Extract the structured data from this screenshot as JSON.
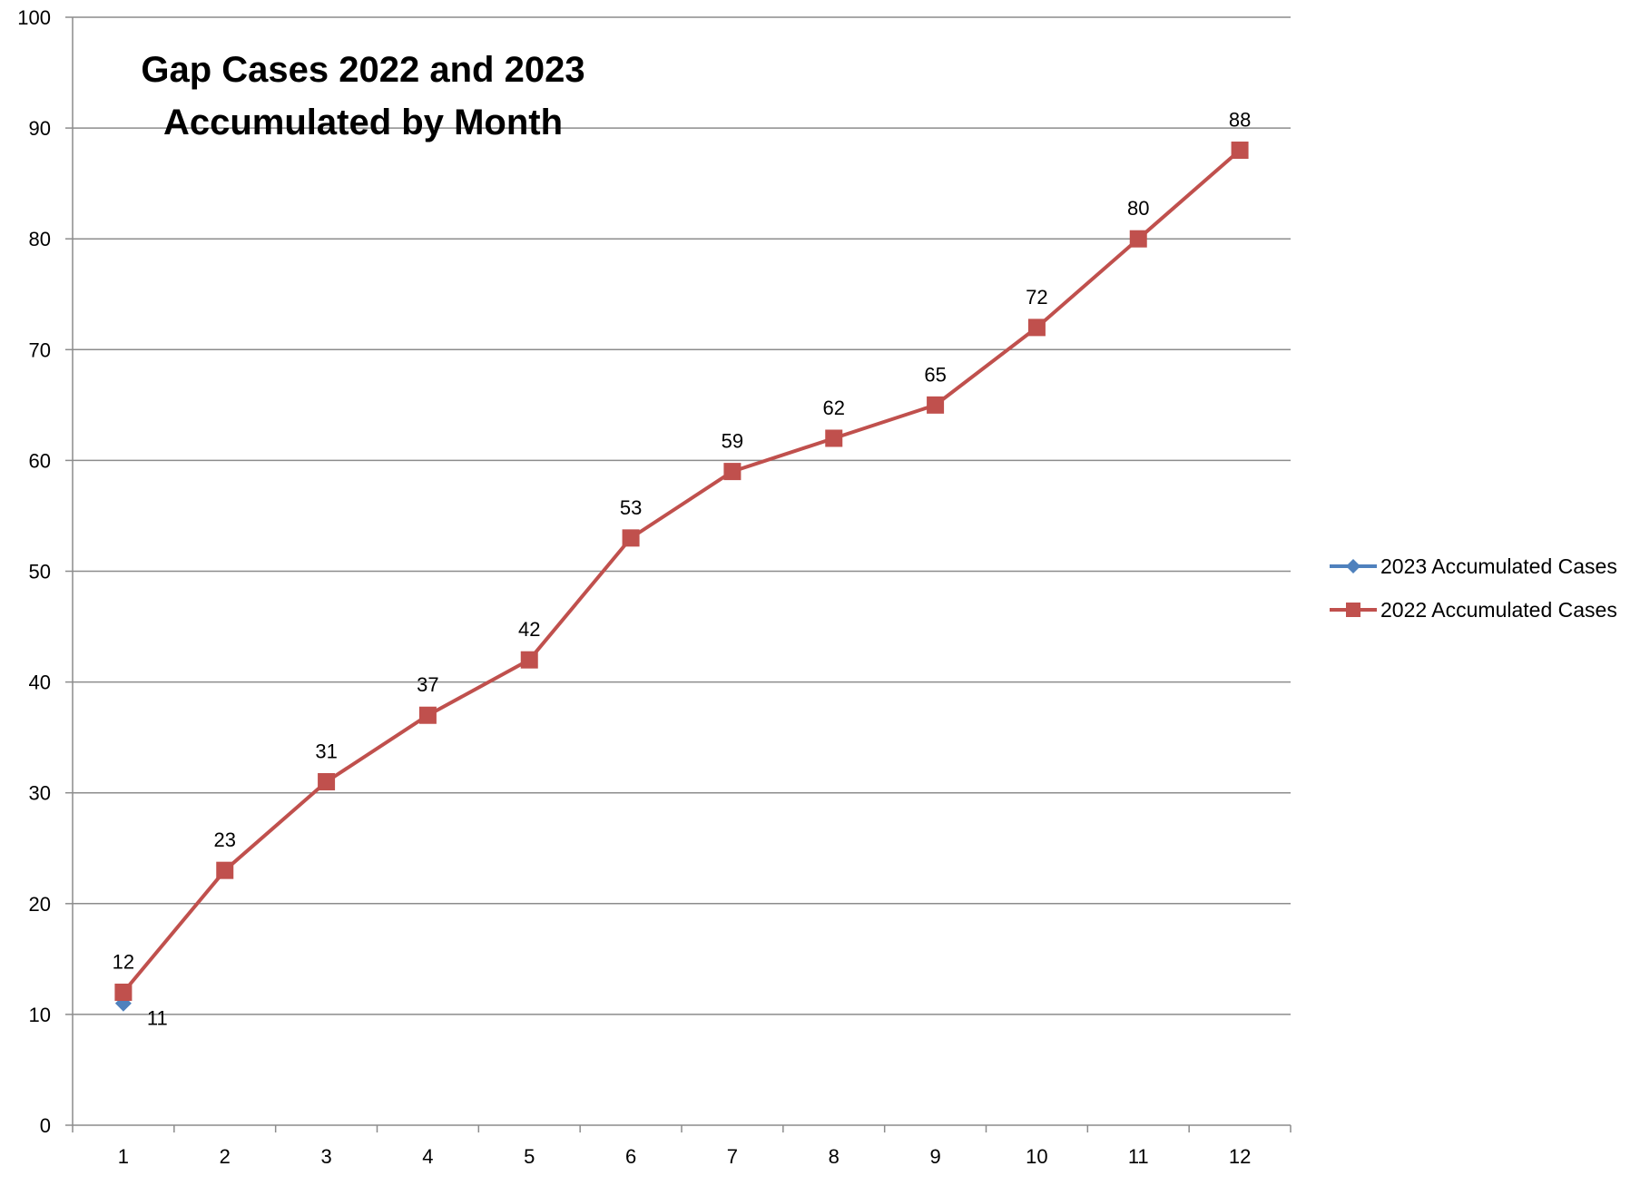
{
  "chart_data": {
    "type": "line",
    "title_lines": [
      "Gap Cases 2022 and 2023",
      "Accumulated by Month"
    ],
    "xlabel": "",
    "ylabel": "",
    "categories": [
      "1",
      "2",
      "3",
      "4",
      "5",
      "6",
      "7",
      "8",
      "9",
      "10",
      "11",
      "12"
    ],
    "ylim": [
      0,
      100
    ],
    "yticks": [
      0,
      10,
      20,
      30,
      40,
      50,
      60,
      70,
      80,
      90,
      100
    ],
    "grid": true,
    "legend_position": "right",
    "series": [
      {
        "name": "2023 Accumulated Cases",
        "color": "#4f81bd",
        "marker": "diamond",
        "values": [
          11,
          null,
          null,
          null,
          null,
          null,
          null,
          null,
          null,
          null,
          null,
          null
        ]
      },
      {
        "name": "2022 Accumulated Cases",
        "color": "#c0504d",
        "marker": "square",
        "values": [
          12,
          23,
          31,
          37,
          42,
          53,
          59,
          62,
          65,
          72,
          80,
          88
        ]
      }
    ]
  }
}
